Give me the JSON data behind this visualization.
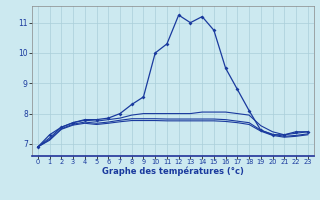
{
  "xlabel": "Graphe des températures (°c)",
  "background_color": "#cce9f0",
  "grid_color": "#aacfda",
  "line_color": "#1a3a9e",
  "xlim": [
    -0.5,
    23.5
  ],
  "ylim": [
    6.6,
    11.55
  ],
  "yticks": [
    7,
    8,
    9,
    10,
    11
  ],
  "xticks": [
    0,
    1,
    2,
    3,
    4,
    5,
    6,
    7,
    8,
    9,
    10,
    11,
    12,
    13,
    14,
    15,
    16,
    17,
    18,
    19,
    20,
    21,
    22,
    23
  ],
  "line1_x": [
    0,
    1,
    2,
    3,
    4,
    5,
    6,
    7,
    8,
    9,
    10,
    11,
    12,
    13,
    14,
    15,
    16,
    17,
    18,
    19,
    20,
    21,
    22,
    23
  ],
  "line1_y": [
    6.9,
    7.3,
    7.55,
    7.7,
    7.8,
    7.8,
    7.85,
    8.0,
    8.3,
    8.55,
    10.0,
    10.3,
    11.25,
    11.0,
    11.2,
    10.75,
    9.5,
    8.8,
    8.1,
    7.45,
    7.3,
    7.3,
    7.4,
    7.4
  ],
  "line2_x": [
    0,
    1,
    2,
    3,
    4,
    5,
    6,
    7,
    8,
    9,
    10,
    11,
    12,
    13,
    14,
    15,
    16,
    17,
    18,
    19,
    20,
    21,
    22,
    23
  ],
  "line2_y": [
    6.9,
    7.2,
    7.55,
    7.7,
    7.78,
    7.75,
    7.8,
    7.85,
    7.95,
    8.0,
    8.0,
    8.0,
    8.0,
    8.0,
    8.05,
    8.05,
    8.05,
    8.0,
    7.95,
    7.6,
    7.4,
    7.3,
    7.35,
    7.4
  ],
  "line3_x": [
    0,
    1,
    2,
    3,
    4,
    5,
    6,
    7,
    8,
    9,
    10,
    11,
    12,
    13,
    14,
    15,
    16,
    17,
    18,
    19,
    20,
    21,
    22,
    23
  ],
  "line3_y": [
    6.9,
    7.15,
    7.5,
    7.65,
    7.72,
    7.68,
    7.72,
    7.78,
    7.83,
    7.83,
    7.83,
    7.82,
    7.82,
    7.82,
    7.82,
    7.82,
    7.8,
    7.75,
    7.7,
    7.45,
    7.32,
    7.25,
    7.28,
    7.33
  ],
  "line4_x": [
    0,
    1,
    2,
    3,
    4,
    5,
    6,
    7,
    8,
    9,
    10,
    11,
    12,
    13,
    14,
    15,
    16,
    17,
    18,
    19,
    20,
    21,
    22,
    23
  ],
  "line4_y": [
    6.9,
    7.12,
    7.48,
    7.62,
    7.68,
    7.64,
    7.68,
    7.73,
    7.77,
    7.77,
    7.77,
    7.76,
    7.76,
    7.76,
    7.76,
    7.76,
    7.74,
    7.7,
    7.64,
    7.42,
    7.28,
    7.22,
    7.25,
    7.3
  ]
}
